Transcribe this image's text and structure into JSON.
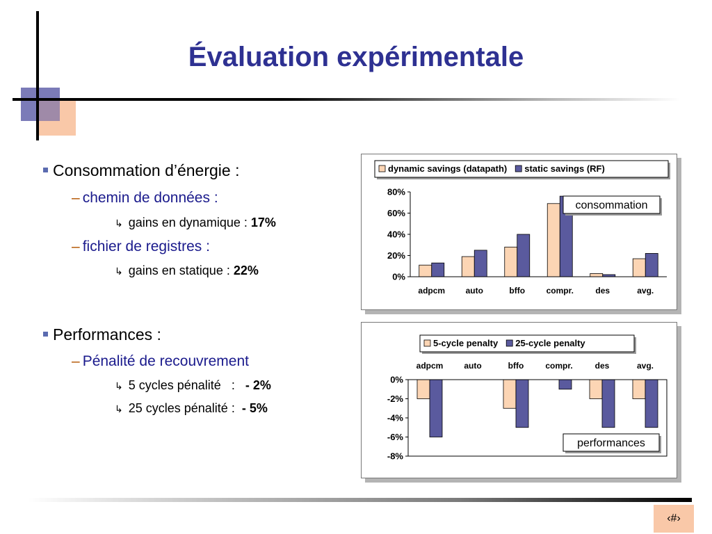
{
  "slide": {
    "title": "Évaluation expérimentale",
    "page_number": "‹#›"
  },
  "bullets": {
    "energy": {
      "label": "Consommation d’énergie :",
      "datapath_label": "chemin de données :",
      "datapath_detail_text": "gains en dynamique : ",
      "datapath_detail_value": "17%",
      "regfile_label": "fichier de registres :",
      "regfile_detail_text": "gains en statique : ",
      "regfile_detail_value": "22%"
    },
    "perf": {
      "label": "Performances :",
      "penalty_label": "Pénalité de recouvrement",
      "p5_text": "5 cycles pénalité   :   ",
      "p5_value": "- 2%",
      "p25_text": "25 cycles pénalité :  ",
      "p25_value": "- 5%"
    }
  },
  "colors": {
    "series_a": "#fcd5b4",
    "series_b": "#5a5a9e",
    "title": "#2e3192"
  },
  "chart_data": [
    {
      "type": "bar",
      "categories": [
        "adpcm",
        "auto",
        "bffo",
        "compr.",
        "des",
        "avg."
      ],
      "series": [
        {
          "name": "dynamic savings (datapath)",
          "values": [
            11,
            19,
            28,
            69,
            3,
            17
          ]
        },
        {
          "name": "static savings (RF)",
          "values": [
            13,
            25,
            40,
            76,
            2,
            22
          ]
        }
      ],
      "ylim": [
        0,
        80
      ],
      "yticks": [
        "0%",
        "20%",
        "40%",
        "60%",
        "80%"
      ],
      "annotation": "consommation",
      "legend": "top"
    },
    {
      "type": "bar",
      "categories": [
        "adpcm",
        "auto",
        "bffo",
        "compr.",
        "des",
        "avg."
      ],
      "series": [
        {
          "name": "5-cycle penalty",
          "values": [
            -2,
            0,
            -3,
            0,
            -2,
            -2
          ]
        },
        {
          "name": "25-cycle penalty",
          "values": [
            -6,
            0,
            -5,
            -1,
            -5,
            -5
          ]
        }
      ],
      "ylim": [
        -8,
        0
      ],
      "yticks": [
        "0%",
        "-2%",
        "-4%",
        "-6%",
        "-8%"
      ],
      "annotation": "performances",
      "legend": "top"
    }
  ]
}
